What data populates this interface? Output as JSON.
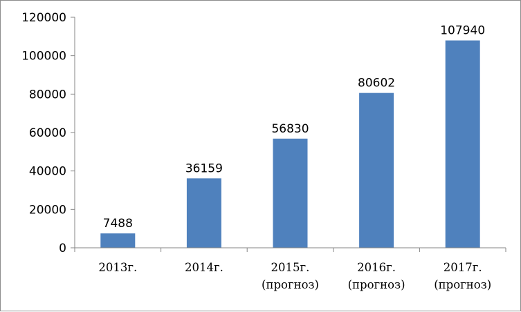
{
  "chart_data": {
    "type": "bar",
    "categories": [
      [
        "2013г."
      ],
      [
        "2014г."
      ],
      [
        "2015г.",
        "(прогноз)"
      ],
      [
        "2016г.",
        "(прогноз)"
      ],
      [
        "2017г.",
        "(прогноз)"
      ]
    ],
    "values": [
      7488,
      36159,
      56830,
      80602,
      107940
    ],
    "ylim": [
      0,
      120000
    ],
    "yticks": [
      0,
      20000,
      40000,
      60000,
      80000,
      100000,
      120000
    ],
    "bar_color": "#4f81bd",
    "axis_color": "#868686",
    "legend": "none",
    "grid": false,
    "data_labels": true
  }
}
